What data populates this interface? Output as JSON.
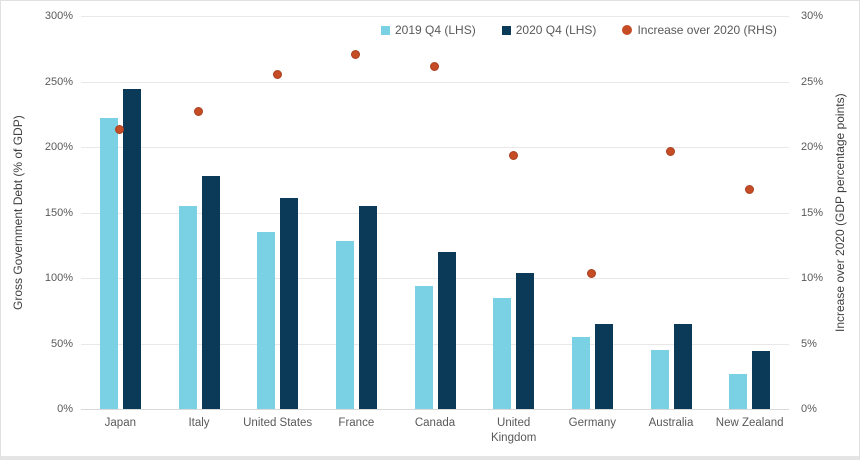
{
  "chart_data": {
    "type": "bar",
    "title": "",
    "categories": [
      "Japan",
      "Italy",
      "United States",
      "France",
      "Canada",
      "United Kingdom",
      "Germany",
      "Australia",
      "New Zealand"
    ],
    "series": [
      {
        "name": "2019 Q4 (LHS)",
        "style": "bar",
        "axis": "left",
        "color": "#7AD1E3",
        "values": [
          222,
          155,
          135,
          128,
          94,
          85,
          55,
          45,
          27
        ]
      },
      {
        "name": "2020 Q4 (LHS)",
        "style": "bar",
        "axis": "left",
        "color": "#0A3A58",
        "values": [
          244,
          178,
          161,
          155,
          120,
          104,
          65,
          65,
          44
        ]
      },
      {
        "name": "Increase over 2020 (RHS)",
        "style": "point",
        "axis": "right",
        "color": "#C64C26",
        "values": [
          21.3,
          22.7,
          25.5,
          27.0,
          26.1,
          19.3,
          10.3,
          19.6,
          16.7
        ]
      }
    ],
    "ylabel_left": "Gross Government Debt (% of GDP)",
    "ylabel_right": "Increase over 2020 (GDP percentage points)",
    "ylim_left": [
      0,
      300
    ],
    "ylim_right": [
      0,
      30
    ],
    "yticks_left": [
      "0%",
      "50%",
      "100%",
      "150%",
      "200%",
      "250%",
      "300%"
    ],
    "yticks_right": [
      "0%",
      "5%",
      "10%",
      "15%",
      "20%",
      "25%",
      "30%"
    ],
    "grid": true,
    "legend_position": "top"
  },
  "colors": {
    "gridline": "#e8e8e8",
    "baseline": "#d9d9d9",
    "tick_text": "#595959",
    "axis_title_text": "#3f3f3f",
    "legend_text": "#595959",
    "panel_border": "#e0e0e0"
  }
}
